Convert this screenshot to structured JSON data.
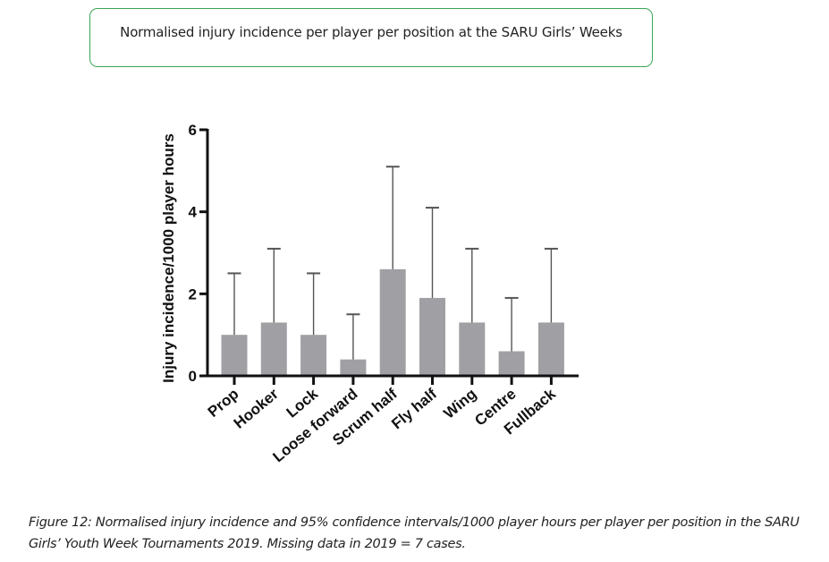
{
  "title_box": {
    "text": "Normalised injury incidence per player per position at the SARU Girls’ Weeks",
    "border_color": "#3aa655"
  },
  "caption": {
    "label": "Figure 12:",
    "text": " Normalised injury incidence and 95% confidence intervals/1000 player hours per player per position in the SARU Girls’ Youth Week Tournaments 2019. Missing data in 2019 = 7 cases."
  },
  "chart_data": {
    "type": "bar",
    "title": "Normalised injury incidence per player per position at the SARU Girls’ Weeks",
    "xlabel": "",
    "ylabel": "Injury incidence/1000 player hours",
    "ylim": [
      0,
      6
    ],
    "yticks": [
      0,
      2,
      4,
      6
    ],
    "grid": false,
    "legend": "none",
    "bar_color": "#a0a0a4",
    "error_bar_color": "#555555",
    "categories": [
      "Prop",
      "Hooker",
      "Lock",
      "Loose forward",
      "Scrum half",
      "Fly half",
      "Wing",
      "Centre",
      "Fullback"
    ],
    "values": [
      1.0,
      1.3,
      1.0,
      0.4,
      2.6,
      1.9,
      1.3,
      0.6,
      1.3
    ],
    "ci_upper": [
      2.5,
      3.1,
      2.5,
      1.5,
      5.1,
      4.1,
      3.1,
      1.9,
      3.1
    ]
  }
}
